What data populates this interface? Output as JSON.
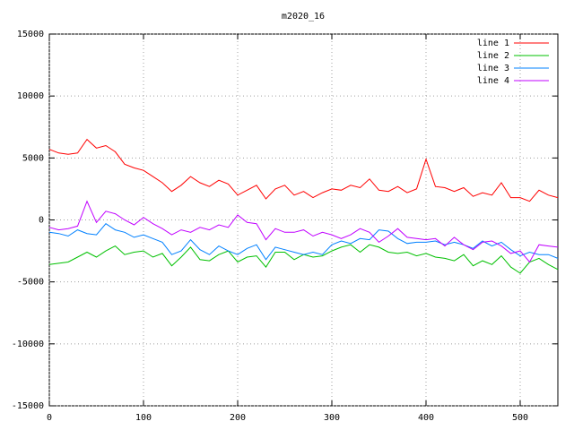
{
  "chart_data": {
    "type": "line",
    "title": "m2020_16",
    "x": [
      0,
      10,
      20,
      30,
      40,
      50,
      60,
      70,
      80,
      90,
      100,
      110,
      120,
      130,
      140,
      150,
      160,
      170,
      180,
      190,
      200,
      210,
      220,
      230,
      240,
      250,
      260,
      270,
      280,
      290,
      300,
      310,
      320,
      330,
      340,
      350,
      360,
      370,
      380,
      390,
      400,
      410,
      420,
      430,
      440,
      450,
      460,
      470,
      480,
      490,
      500,
      510,
      520,
      530,
      540
    ],
    "series": [
      {
        "name": "line 1",
        "color": "#ff0000",
        "values": [
          5700,
          5400,
          5300,
          5400,
          6500,
          5800,
          6000,
          5500,
          4500,
          4200,
          4000,
          3500,
          3000,
          2300,
          2800,
          3500,
          3000,
          2700,
          3200,
          2900,
          2000,
          2400,
          2800,
          1700,
          2500,
          2800,
          2000,
          2300,
          1800,
          2200,
          2500,
          2400,
          2800,
          2600,
          3300,
          2400,
          2300,
          2700,
          2200,
          2500,
          4900,
          2700,
          2600,
          2300,
          2600,
          1900,
          2200,
          2000,
          3000,
          1800,
          1800,
          1500,
          2400,
          2000,
          1800
        ]
      },
      {
        "name": "line 2",
        "color": "#00c000",
        "values": [
          -3600,
          -3500,
          -3400,
          -3000,
          -2600,
          -3000,
          -2500,
          -2100,
          -2800,
          -2600,
          -2500,
          -3000,
          -2700,
          -3700,
          -3000,
          -2200,
          -3200,
          -3300,
          -2800,
          -2500,
          -3400,
          -3000,
          -2900,
          -3800,
          -2600,
          -2600,
          -3200,
          -2800,
          -3000,
          -2900,
          -2500,
          -2200,
          -2000,
          -2600,
          -2000,
          -2200,
          -2600,
          -2700,
          -2600,
          -2900,
          -2700,
          -3000,
          -3100,
          -3300,
          -2800,
          -3700,
          -3300,
          -3600,
          -2900,
          -3800,
          -4300,
          -3400,
          -3100,
          -3600,
          -4000
        ]
      },
      {
        "name": "line 3",
        "color": "#0080ff",
        "values": [
          -1000,
          -1100,
          -1300,
          -800,
          -1100,
          -1200,
          -300,
          -800,
          -1000,
          -1400,
          -1200,
          -1500,
          -1800,
          -2800,
          -2500,
          -1600,
          -2400,
          -2800,
          -2100,
          -2500,
          -2800,
          -2300,
          -2000,
          -3200,
          -2200,
          -2400,
          -2600,
          -2800,
          -2600,
          -2800,
          -2000,
          -1700,
          -1900,
          -1500,
          -1600,
          -800,
          -900,
          -1500,
          -1900,
          -1800,
          -1800,
          -1700,
          -2000,
          -1800,
          -2000,
          -2300,
          -1700,
          -2100,
          -1800,
          -2400,
          -2900,
          -2600,
          -2800,
          -2800,
          -3100
        ]
      },
      {
        "name": "line 4",
        "color": "#c000ff",
        "values": [
          -600,
          -800,
          -700,
          -500,
          1500,
          -200,
          700,
          500,
          0,
          -400,
          200,
          -300,
          -700,
          -1200,
          -800,
          -1000,
          -600,
          -800,
          -400,
          -600,
          400,
          -200,
          -300,
          -1600,
          -700,
          -1000,
          -1000,
          -800,
          -1300,
          -1000,
          -1200,
          -1500,
          -1200,
          -700,
          -1000,
          -1800,
          -1300,
          -700,
          -1400,
          -1500,
          -1600,
          -1500,
          -2100,
          -1400,
          -2000,
          -2400,
          -1800,
          -1700,
          -2100,
          -2700,
          -2500,
          -3400,
          -2000,
          -2100,
          -2200
        ]
      }
    ],
    "xlim": [
      0,
      540
    ],
    "ylim": [
      -15000,
      15000
    ],
    "xticks": [
      0,
      100,
      200,
      300,
      400,
      500
    ],
    "yticks": [
      -15000,
      -10000,
      -5000,
      0,
      5000,
      10000,
      15000
    ],
    "grid": true,
    "legend": "top-right"
  }
}
